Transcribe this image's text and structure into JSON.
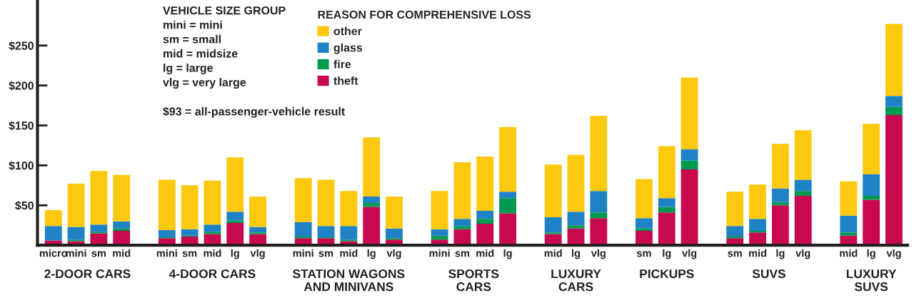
{
  "chart_data": {
    "type": "bar",
    "stacked": true,
    "categories": [
      "micro",
      "mini",
      "sm",
      "mid",
      null,
      "mini",
      "sm",
      "mid",
      "lg",
      "vlg",
      null,
      "mini",
      "sm",
      "mid",
      "lg",
      "vlg",
      null,
      "mini",
      "sm",
      "mid",
      "lg",
      null,
      "mid",
      "lg",
      "vlg",
      null,
      "sm",
      "lg",
      "vlg",
      null,
      "sm",
      "mid",
      "lg",
      "vlg",
      null,
      "mid",
      "lg",
      "vlg"
    ],
    "series": [
      {
        "name": "theft",
        "color": "#c8094f",
        "values": [
          6,
          5,
          15,
          18,
          null,
          9,
          11,
          14,
          28,
          14,
          null,
          9,
          9,
          5,
          48,
          7,
          null,
          7,
          20,
          27,
          40,
          null,
          14,
          21,
          34,
          null,
          18,
          41,
          95,
          null,
          9,
          16,
          50,
          62,
          null,
          12,
          57,
          163
        ]
      },
      {
        "name": "fire",
        "color": "#009a4e",
        "values": [
          0,
          2,
          2,
          3,
          null,
          1,
          1,
          3,
          3,
          2,
          null,
          2,
          1,
          2,
          5,
          2,
          null,
          5,
          4,
          6,
          19,
          null,
          2,
          4,
          7,
          null,
          3,
          7,
          11,
          null,
          2,
          2,
          4,
          6,
          null,
          4,
          5,
          10
        ]
      },
      {
        "name": "glass",
        "color": "#1f82c6",
        "values": [
          18,
          16,
          9,
          9,
          null,
          9,
          8,
          9,
          11,
          7,
          null,
          18,
          14,
          17,
          8,
          12,
          null,
          8,
          9,
          10,
          8,
          null,
          19,
          17,
          27,
          null,
          13,
          11,
          14,
          null,
          13,
          15,
          17,
          14,
          null,
          21,
          27,
          14
        ]
      },
      {
        "name": "other",
        "color": "#fcc90f",
        "values": [
          20,
          54,
          67,
          58,
          null,
          63,
          55,
          55,
          68,
          38,
          null,
          55,
          58,
          44,
          74,
          40,
          null,
          48,
          71,
          68,
          81,
          null,
          66,
          71,
          94,
          null,
          49,
          65,
          90,
          null,
          43,
          43,
          56,
          62,
          null,
          43,
          63,
          90
        ]
      }
    ],
    "legend_title": "REASON FOR COMPREHENSIVE LOSS",
    "legend": "top",
    "grid": false,
    "ylim": [
      0,
      307
    ],
    "yticks": [
      {
        "value": 50,
        "label": "$50"
      },
      {
        "value": 100,
        "label": "$100"
      },
      {
        "value": 150,
        "label": "$150"
      },
      {
        "value": 200,
        "label": "$200"
      },
      {
        "value": 250,
        "label": "$250"
      }
    ],
    "annotations": [
      "2-DOOR CARS",
      "4-DOOR CARS",
      "STATION WAGONS\nAND MINIVANS",
      "SPORTS\nCARS",
      "LUXURY\nCARS",
      "PICKUPS",
      "SUVS",
      "LUXURY\nSUVS",
      "VEHICLE SIZE GROUP\nmini = mini\nsm = small\nmid = midsize\nlg = large\nvlg = very large\n\n$93 = all-passenger-vehicle result"
    ]
  }
}
